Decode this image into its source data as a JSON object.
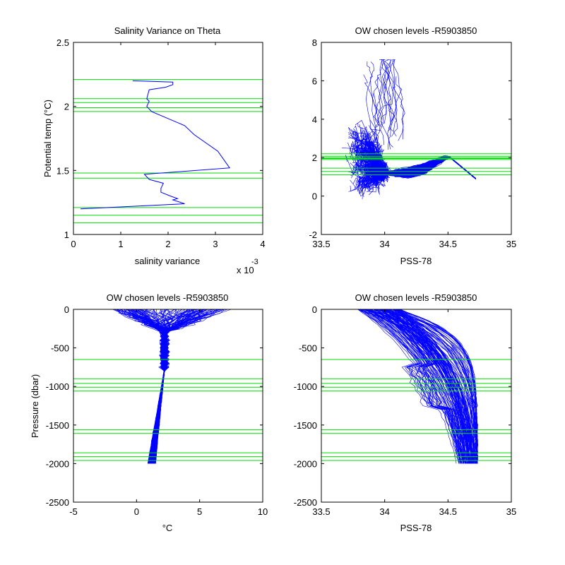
{
  "colors": {
    "profile": "#0000ff",
    "levels": "#00dd00",
    "axis": "#000000",
    "background": "#ffffff"
  },
  "chart_data": [
    {
      "id": "p1",
      "type": "line",
      "title": "Salinity Variance on Theta",
      "xlabel": "salinity variance",
      "ylabel": "Potential temp (°C)",
      "xlim": [
        0,
        0.004
      ],
      "ylim": [
        1,
        2.5
      ],
      "xticks": [
        0,
        0.001,
        0.002,
        0.003,
        0.004
      ],
      "xtick_labels": [
        "0",
        "1",
        "2",
        "3",
        "4"
      ],
      "yticks": [
        1,
        1.5,
        2,
        2.5
      ],
      "ytick_labels": [
        "1",
        "1.5",
        "2",
        "2.5"
      ],
      "x_exponent_label": "x 10",
      "x_exponent": "-3",
      "series": [
        {
          "x": [
            0.00125,
            0.0021,
            0.0021,
            0.00195,
            0.0016,
            0.00155,
            0.0016,
            0.00155,
            0.00165,
            0.00235,
            0.00255,
            0.00305,
            0.0033,
            0.0015,
            0.0016,
            0.0019,
            0.00185,
            0.00185,
            0.00205,
            0.0022,
            0.0021,
            0.00235,
            0.00015
          ],
          "y": [
            2.2,
            2.19,
            2.17,
            2.15,
            2.13,
            2.06,
            2.04,
            2.0,
            1.96,
            1.85,
            1.78,
            1.65,
            1.52,
            1.47,
            1.43,
            1.4,
            1.36,
            1.33,
            1.3,
            1.28,
            1.27,
            1.24,
            1.2
          ]
        }
      ],
      "hlines": [
        2.21,
        2.06,
        2.03,
        1.99,
        1.96,
        1.48,
        1.44,
        1.21,
        1.15,
        1.09
      ]
    },
    {
      "id": "p2",
      "type": "line",
      "title": "OW chosen levels -R5903850",
      "xlabel": "PSS-78",
      "ylabel": "",
      "xlim": [
        33.5,
        35
      ],
      "ylim": [
        -2,
        8
      ],
      "xticks": [
        33.5,
        34,
        34.5,
        35
      ],
      "xtick_labels": [
        "33.5",
        "34",
        "34.5",
        "35"
      ],
      "yticks": [
        -2,
        0,
        2,
        4,
        6,
        8
      ],
      "ytick_labels": [
        "-2",
        "0",
        "2",
        "4",
        "6",
        "8"
      ],
      "hlines": [
        2.2,
        2.07,
        2.0,
        1.95,
        1.9,
        1.45,
        1.28,
        1.1
      ]
    },
    {
      "id": "p3",
      "type": "line",
      "title": "OW chosen levels -R5903850",
      "xlabel": "°C",
      "ylabel": "Pressure (dbar)",
      "xlim": [
        -5,
        10
      ],
      "ylim": [
        -2500,
        0
      ],
      "xticks": [
        -5,
        0,
        5,
        10
      ],
      "xtick_labels": [
        "-5",
        "0",
        "5",
        "10"
      ],
      "yticks": [
        -2500,
        -2000,
        -1500,
        -1000,
        -500,
        0
      ],
      "ytick_labels": [
        "-2500",
        "-2000",
        "-1500",
        "-1000",
        "-500",
        "0"
      ],
      "hlines": [
        -650,
        -900,
        -960,
        -1010,
        -1060,
        -1560,
        -1610,
        -1860,
        -1910,
        -1960
      ]
    },
    {
      "id": "p4",
      "type": "line",
      "title": "OW chosen levels -R5903850",
      "xlabel": "PSS-78",
      "ylabel": "",
      "xlim": [
        33.5,
        35
      ],
      "ylim": [
        -2500,
        0
      ],
      "xticks": [
        33.5,
        34,
        34.5,
        35
      ],
      "xtick_labels": [
        "33.5",
        "34",
        "34.5",
        "35"
      ],
      "yticks": [
        -2500,
        -2000,
        -1500,
        -1000,
        -500,
        0
      ],
      "ytick_labels": [
        "-2500",
        "-2000",
        "-1500",
        "-1000",
        "-500",
        "0"
      ],
      "hlines": [
        -650,
        -900,
        -960,
        -1010,
        -1060,
        -1560,
        -1610,
        -1860,
        -1910,
        -1960
      ]
    }
  ]
}
